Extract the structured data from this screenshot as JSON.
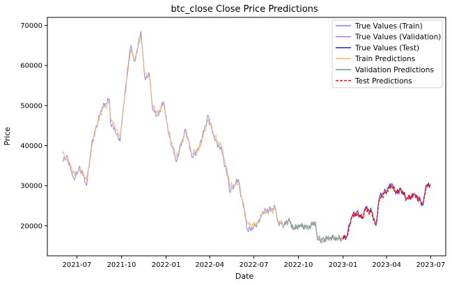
{
  "chart_data": {
    "type": "line",
    "title": "btc_close Close Price Predictions",
    "xlabel": "Date",
    "ylabel": "Price",
    "x_range": [
      "2021-05-01",
      "2023-08-01"
    ],
    "ylim": [
      12500,
      72000
    ],
    "grid": false,
    "legend_position": "top-right",
    "x_ticks": [
      "2021-07",
      "2021-10",
      "2022-01",
      "2022-04",
      "2022-07",
      "2022-10",
      "2023-01",
      "2023-04",
      "2023-07"
    ],
    "y_ticks": [
      20000,
      30000,
      40000,
      50000,
      60000,
      70000
    ],
    "legend": [
      {
        "name": "True Values (Train)",
        "color": "#7b7bf5",
        "dash": "solid"
      },
      {
        "name": "True Values (Validation)",
        "color": "#b47ad0",
        "dash": "solid"
      },
      {
        "name": "True Values (Test)",
        "color": "#1a1acd",
        "dash": "solid"
      },
      {
        "name": "Train Predictions",
        "color": "#f5b26b",
        "dash": "solid"
      },
      {
        "name": "Validation Predictions",
        "color": "#6b9e6b",
        "dash": "solid"
      },
      {
        "name": "Test Predictions",
        "color": "#ff0000",
        "dash": "dashed"
      }
    ],
    "series": [
      {
        "name": "True Values (Train)",
        "color": "#7b7bf5",
        "points": [
          [
            "2021-06-01",
            36000
          ],
          [
            "2021-06-10",
            37500
          ],
          [
            "2021-06-20",
            33500
          ],
          [
            "2021-06-26",
            31500
          ],
          [
            "2021-07-05",
            34500
          ],
          [
            "2021-07-15",
            32500
          ],
          [
            "2021-07-21",
            30000
          ],
          [
            "2021-07-31",
            40000
          ],
          [
            "2021-08-10",
            45000
          ],
          [
            "2021-08-22",
            49500
          ],
          [
            "2021-09-06",
            51500
          ],
          [
            "2021-09-08",
            46000
          ],
          [
            "2021-09-20",
            43000
          ],
          [
            "2021-09-28",
            41000
          ],
          [
            "2021-10-05",
            50000
          ],
          [
            "2021-10-15",
            60000
          ],
          [
            "2021-10-20",
            65000
          ],
          [
            "2021-10-28",
            61000
          ],
          [
            "2021-11-08",
            67000
          ],
          [
            "2021-11-10",
            68500
          ],
          [
            "2021-11-18",
            57000
          ],
          [
            "2021-11-28",
            57500
          ],
          [
            "2021-12-04",
            49000
          ],
          [
            "2021-12-15",
            47500
          ],
          [
            "2021-12-27",
            51000
          ],
          [
            "2022-01-05",
            43500
          ],
          [
            "2022-01-22",
            36000
          ],
          [
            "2022-02-10",
            44000
          ],
          [
            "2022-02-24",
            37000
          ],
          [
            "2022-03-10",
            39500
          ],
          [
            "2022-03-29",
            47500
          ],
          [
            "2022-04-10",
            42000
          ],
          [
            "2022-04-26",
            38500
          ],
          [
            "2022-05-10",
            31000
          ],
          [
            "2022-05-12",
            28500
          ],
          [
            "2022-05-30",
            31500
          ],
          [
            "2022-06-13",
            22500
          ],
          [
            "2022-06-18",
            19000
          ],
          [
            "2022-07-01",
            19500
          ],
          [
            "2022-07-10",
            21000
          ],
          [
            "2022-07-20",
            23500
          ],
          [
            "2022-08-14",
            24500
          ],
          [
            "2022-08-19",
            21000
          ],
          [
            "2022-09-01",
            20000
          ]
        ]
      },
      {
        "name": "Train Predictions",
        "color": "#f5b26b",
        "points": [
          [
            "2021-06-01",
            38000
          ],
          [
            "2021-06-10",
            36500
          ],
          [
            "2021-06-20",
            34500
          ],
          [
            "2021-06-26",
            32500
          ],
          [
            "2021-07-05",
            34000
          ],
          [
            "2021-07-15",
            33000
          ],
          [
            "2021-07-21",
            31000
          ],
          [
            "2021-07-31",
            39500
          ],
          [
            "2021-08-10",
            44500
          ],
          [
            "2021-08-22",
            49000
          ],
          [
            "2021-09-06",
            51000
          ],
          [
            "2021-09-08",
            47000
          ],
          [
            "2021-09-20",
            44000
          ],
          [
            "2021-09-28",
            42000
          ],
          [
            "2021-10-05",
            49500
          ],
          [
            "2021-10-15",
            59000
          ],
          [
            "2021-10-20",
            64000
          ],
          [
            "2021-10-28",
            61500
          ],
          [
            "2021-11-08",
            66000
          ],
          [
            "2021-11-10",
            67500
          ],
          [
            "2021-11-18",
            58000
          ],
          [
            "2021-11-28",
            57000
          ],
          [
            "2021-12-04",
            50000
          ],
          [
            "2021-12-15",
            48000
          ],
          [
            "2021-12-27",
            50500
          ],
          [
            "2022-01-05",
            44000
          ],
          [
            "2022-01-22",
            37000
          ],
          [
            "2022-02-10",
            43500
          ],
          [
            "2022-02-24",
            38000
          ],
          [
            "2022-03-10",
            39000
          ],
          [
            "2022-03-29",
            46500
          ],
          [
            "2022-04-10",
            42500
          ],
          [
            "2022-04-26",
            39500
          ],
          [
            "2022-05-10",
            32000
          ],
          [
            "2022-05-12",
            30000
          ],
          [
            "2022-05-30",
            30500
          ],
          [
            "2022-06-13",
            23500
          ],
          [
            "2022-06-18",
            20500
          ],
          [
            "2022-07-01",
            20000
          ],
          [
            "2022-07-10",
            21000
          ],
          [
            "2022-07-20",
            23000
          ],
          [
            "2022-08-14",
            24000
          ],
          [
            "2022-08-19",
            21500
          ],
          [
            "2022-09-01",
            20000
          ]
        ]
      },
      {
        "name": "True Values (Validation)",
        "color": "#b47ad0",
        "points": [
          [
            "2022-09-01",
            20000
          ],
          [
            "2022-09-12",
            22000
          ],
          [
            "2022-09-20",
            19000
          ],
          [
            "2022-10-05",
            20000
          ],
          [
            "2022-10-20",
            19300
          ],
          [
            "2022-11-05",
            21000
          ],
          [
            "2022-11-09",
            16500
          ],
          [
            "2022-11-20",
            16200
          ],
          [
            "2022-12-05",
            17000
          ],
          [
            "2022-12-20",
            16800
          ],
          [
            "2022-12-31",
            16600
          ]
        ]
      },
      {
        "name": "Validation Predictions",
        "color": "#6b9e6b",
        "points": [
          [
            "2022-09-01",
            20200
          ],
          [
            "2022-09-12",
            21500
          ],
          [
            "2022-09-20",
            19400
          ],
          [
            "2022-10-05",
            20200
          ],
          [
            "2022-10-20",
            19500
          ],
          [
            "2022-11-05",
            20800
          ],
          [
            "2022-11-09",
            17000
          ],
          [
            "2022-11-20",
            16500
          ],
          [
            "2022-12-05",
            17100
          ],
          [
            "2022-12-20",
            16900
          ],
          [
            "2022-12-31",
            16700
          ]
        ]
      },
      {
        "name": "True Values (Test)",
        "color": "#1a1acd",
        "points": [
          [
            "2023-01-01",
            16600
          ],
          [
            "2023-01-10",
            17500
          ],
          [
            "2023-01-14",
            20500
          ],
          [
            "2023-01-20",
            22500
          ],
          [
            "2023-01-30",
            23500
          ],
          [
            "2023-02-10",
            21800
          ],
          [
            "2023-02-16",
            24500
          ],
          [
            "2023-03-01",
            23500
          ],
          [
            "2023-03-10",
            20000
          ],
          [
            "2023-03-14",
            24500
          ],
          [
            "2023-03-18",
            27500
          ],
          [
            "2023-03-30",
            28500
          ],
          [
            "2023-04-11",
            30500
          ],
          [
            "2023-04-20",
            28000
          ],
          [
            "2023-04-30",
            29300
          ],
          [
            "2023-05-12",
            26500
          ],
          [
            "2023-05-29",
            27800
          ],
          [
            "2023-06-10",
            26000
          ],
          [
            "2023-06-15",
            25000
          ],
          [
            "2023-06-21",
            30000
          ],
          [
            "2023-06-30",
            30500
          ]
        ]
      },
      {
        "name": "Test Predictions",
        "color": "#ff0000",
        "dashed": true,
        "points": [
          [
            "2023-01-01",
            16800
          ],
          [
            "2023-01-10",
            17300
          ],
          [
            "2023-01-14",
            20000
          ],
          [
            "2023-01-20",
            22000
          ],
          [
            "2023-01-30",
            23200
          ],
          [
            "2023-02-10",
            22000
          ],
          [
            "2023-02-16",
            24000
          ],
          [
            "2023-03-01",
            23300
          ],
          [
            "2023-03-10",
            20500
          ],
          [
            "2023-03-14",
            24000
          ],
          [
            "2023-03-18",
            27000
          ],
          [
            "2023-03-30",
            28300
          ],
          [
            "2023-04-11",
            30000
          ],
          [
            "2023-04-20",
            28300
          ],
          [
            "2023-04-30",
            29000
          ],
          [
            "2023-05-12",
            26800
          ],
          [
            "2023-05-29",
            27600
          ],
          [
            "2023-06-10",
            26200
          ],
          [
            "2023-06-15",
            25400
          ],
          [
            "2023-06-21",
            29500
          ],
          [
            "2023-06-30",
            30300
          ]
        ]
      }
    ]
  }
}
